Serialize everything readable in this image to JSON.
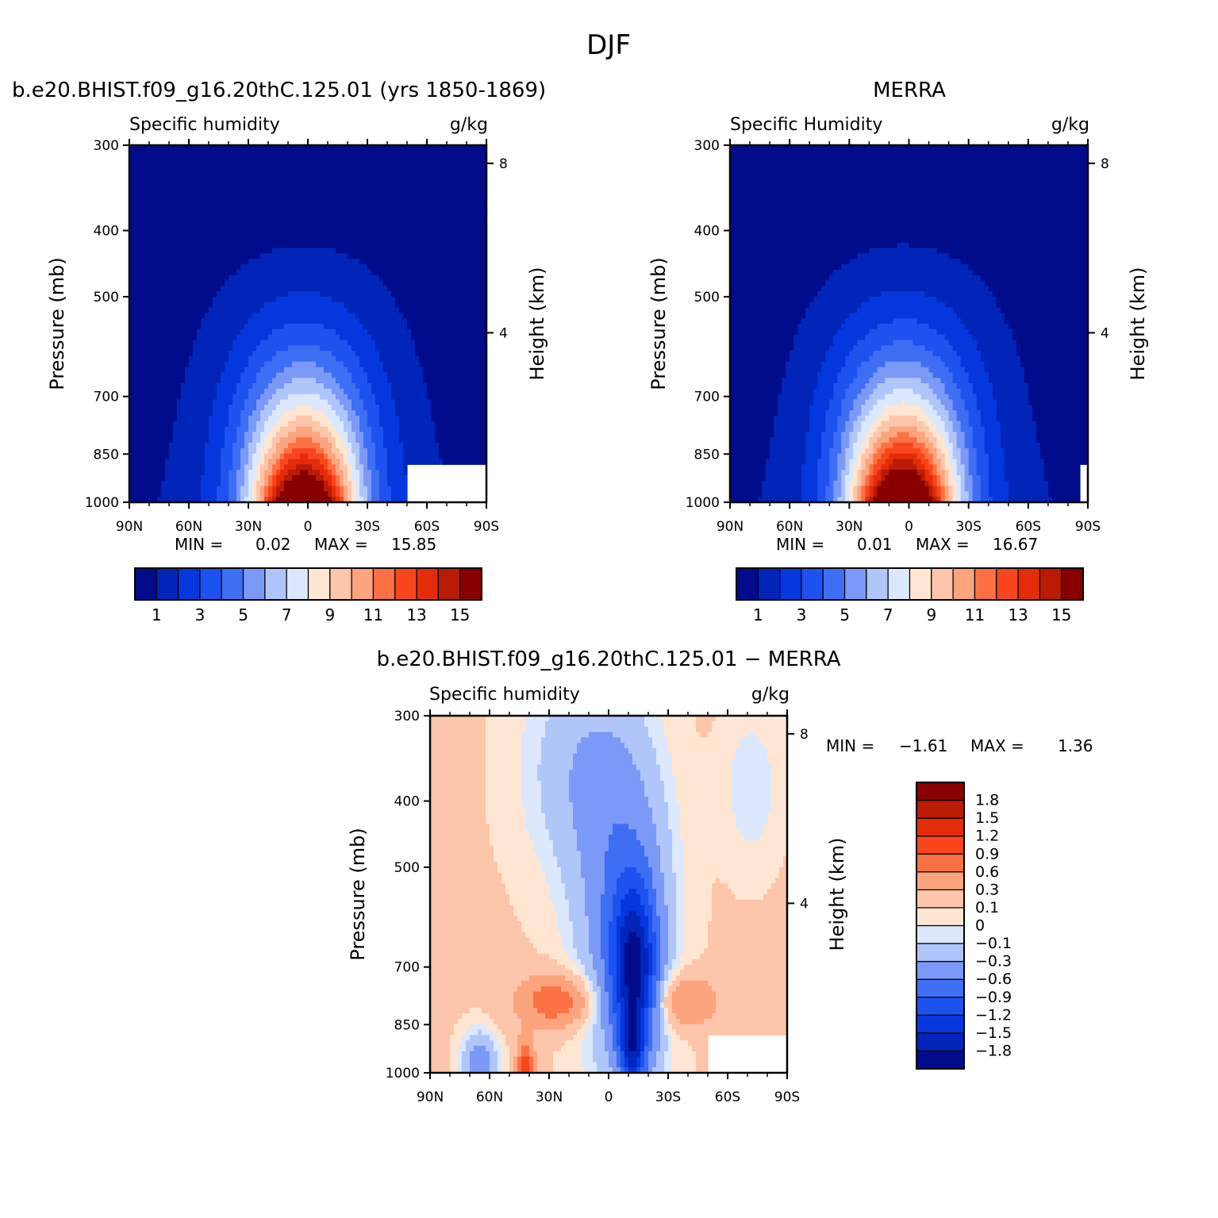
{
  "figure": {
    "title": "DJF"
  },
  "colors": {
    "abs_levels": [
      "#000c8c",
      "#0025b8",
      "#0537de",
      "#1d52f0",
      "#3d6ef3",
      "#7b99f6",
      "#b0c6fa",
      "#dbe8fd",
      "#fee6d2",
      "#fdc5a9",
      "#fca47d",
      "#fc7143",
      "#f9461c",
      "#e42d08",
      "#b91b05",
      "#880000"
    ],
    "diff_levels": [
      "#000c8c",
      "#0025b8",
      "#0537de",
      "#1d52f0",
      "#3d6ef3",
      "#7b99f6",
      "#b0c6fa",
      "#dbe8fd",
      "#fee6d2",
      "#fdc5a9",
      "#fca47d",
      "#fc7143",
      "#f9461c",
      "#e42d08",
      "#b91b05",
      "#880000"
    ]
  },
  "chart_data": [
    {
      "type": "heatmap",
      "name": "model",
      "title": "b.e20.BHIST.f09_g16.20thC.125.01 (yrs 1850-1869)",
      "variable": "Specific humidity",
      "units": "g/kg",
      "ylabel": "Pressure (mb)",
      "ylabel_right": "Height (km)",
      "x_ticks": [
        "90N",
        "60N",
        "30N",
        "0",
        "30S",
        "60S",
        "90S"
      ],
      "y_ticks": [
        "300",
        "400",
        "500",
        "700",
        "850",
        "1000"
      ],
      "height_ticks": [
        "8",
        "4"
      ],
      "ylim": [
        1000,
        300
      ],
      "stats": {
        "min_label": "MIN =",
        "min": "0.02",
        "max_label": "MAX =",
        "max": "15.85"
      },
      "colorbar_labels": [
        "1",
        "3",
        "5",
        "7",
        "9",
        "11",
        "13",
        "15"
      ],
      "peak_value": 15.85,
      "peak_lat": 2,
      "masked_lat_from": -50
    },
    {
      "type": "heatmap",
      "name": "obs",
      "title": "MERRA",
      "variable": "Specific Humidity",
      "units": "g/kg",
      "ylabel": "Pressure (mb)",
      "ylabel_right": "Height (km)",
      "x_ticks": [
        "90N",
        "60N",
        "30N",
        "0",
        "30S",
        "60S",
        "90S"
      ],
      "y_ticks": [
        "300",
        "400",
        "500",
        "700",
        "850",
        "1000"
      ],
      "height_ticks": [
        "8",
        "4"
      ],
      "ylim": [
        1000,
        300
      ],
      "stats": {
        "min_label": "MIN =",
        "min": "0.01",
        "max_label": "MAX =",
        "max": "16.67"
      },
      "colorbar_labels": [
        "1",
        "3",
        "5",
        "7",
        "9",
        "11",
        "13",
        "15"
      ],
      "peak_value": 16.67,
      "peak_lat": 3,
      "masked_lat_from": -85
    },
    {
      "type": "heatmap",
      "name": "diff",
      "title": "b.e20.BHIST.f09_g16.20thC.125.01 − MERRA",
      "variable": "Specific humidity",
      "units": "g/kg",
      "ylabel": "Pressure (mb)",
      "ylabel_right": "Height (km)",
      "x_ticks": [
        "90N",
        "60N",
        "30N",
        "0",
        "30S",
        "60S",
        "90S"
      ],
      "y_ticks": [
        "300",
        "400",
        "500",
        "700",
        "850",
        "1000"
      ],
      "height_ticks": [
        "8",
        "4"
      ],
      "ylim": [
        1000,
        300
      ],
      "stats": {
        "min_label": "MIN =",
        "min": "−1.61",
        "max_label": "MAX =",
        "max": "1.36"
      },
      "colorbar_labels": [
        "1.8",
        "1.5",
        "1.2",
        "0.9",
        "0.6",
        "0.3",
        "0.1",
        "0",
        "−0.1",
        "−0.3",
        "−0.6",
        "−0.9",
        "−1.2",
        "−1.5",
        "−1.8"
      ],
      "levels": [
        -1.8,
        -1.5,
        -1.2,
        -0.9,
        -0.6,
        -0.3,
        -0.1,
        0,
        0.1,
        0.3,
        0.6,
        0.9,
        1.2,
        1.5,
        1.8
      ],
      "masked_lat_from": -50
    }
  ]
}
